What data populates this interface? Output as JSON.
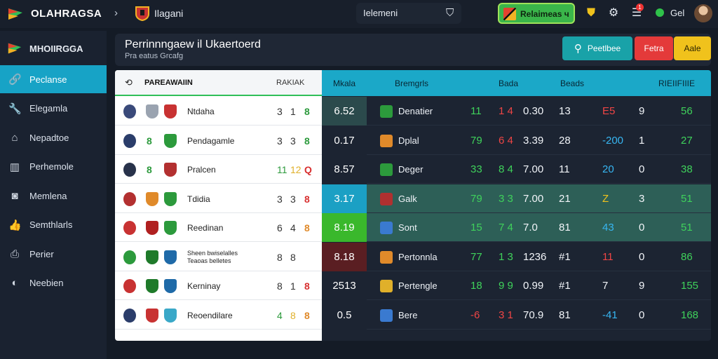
{
  "topbar": {
    "brand": "OLAHRAGSA",
    "breadcrumb_sep": "›",
    "breadcrumb": "Ilagani",
    "search_label": "Ielemeni",
    "live_button": "Relaimeas ч",
    "user_label": "Gel",
    "notif_count": "1"
  },
  "sidebar": {
    "header": "MHOIIRGGA",
    "items": [
      {
        "label": "Peclanse",
        "icon": "link-icon",
        "active": true
      },
      {
        "label": "Elegamla",
        "icon": "wrench-icon",
        "active": false
      },
      {
        "label": "Nepadtoe",
        "icon": "home-icon",
        "active": false
      },
      {
        "label": "Perhemole",
        "icon": "columns-icon",
        "active": false
      },
      {
        "label": "Memlena",
        "icon": "camera-icon",
        "active": false
      },
      {
        "label": "Semthlarls",
        "icon": "thumb-icon",
        "active": false
      },
      {
        "label": "Perier",
        "icon": "printer-icon",
        "active": false
      },
      {
        "label": "Neebien",
        "icon": "badge-icon",
        "active": false
      }
    ]
  },
  "header": {
    "title": "Perrinnngaew il Ukaertoerd",
    "subtitle": "Pra eatus Grcafg",
    "search_button": "Peetlbee",
    "red_button": "Fetra",
    "yellow_button": "Aale"
  },
  "fixtures": {
    "header_left": "PAREAWAIIN",
    "header_right": "RAKIAK",
    "rows": [
      {
        "name": "Ntdaha",
        "mid": "",
        "s1": "3",
        "s2": "1",
        "s3": "8",
        "c1": "#3a4a7a",
        "c2": "#9aa3b0",
        "c3": "#c83232",
        "s3color": "green"
      },
      {
        "name": "Pendagamle",
        "mid": "8",
        "s1": "3",
        "s2": "3",
        "s3": "8",
        "c1": "#2b3d6a",
        "c2": "#2c9a3c",
        "c3": "#2c9a3c",
        "s3color": "green"
      },
      {
        "name": "Pralcen",
        "mid": "8",
        "s1": "11",
        "s2": "12",
        "s3": "Q",
        "c1": "#28324a",
        "c2": "#2c9a3c",
        "c3": "#b33030",
        "s3color": "red"
      },
      {
        "name": "Tdidia",
        "mid": "",
        "s1": "3",
        "s2": "3",
        "s3": "8",
        "c1": "#b33030",
        "c2": "#e08a2a",
        "c3": "#2c9a3c",
        "s3color": "red"
      },
      {
        "name": "Reedinan",
        "mid": "",
        "s1": "6",
        "s2": "4",
        "s3": "8",
        "c1": "#c83232",
        "c2": "#b02020",
        "c3": "#2c9a3c",
        "s3color": "orange"
      },
      {
        "name": "Sheen bwiselalles\nTeaoas belletes",
        "mid": "",
        "s1": "8",
        "s2": "8",
        "s3": "",
        "c1": "#2c9a3c",
        "c2": "#1f7a2a",
        "c3": "#1f6aa8",
        "s3color": "green"
      },
      {
        "name": "Kerninay",
        "mid": "",
        "s1": "8",
        "s2": "1",
        "s3": "8",
        "c1": "#c83232",
        "c2": "#1f7a2a",
        "c3": "#1f6aa8",
        "s3color": "red"
      },
      {
        "name": "Reoendilare",
        "mid": "",
        "s1": "4",
        "s2": "8",
        "s3": "8",
        "c1": "#2b3d6a",
        "c2": "#c83232",
        "c3": "#3aa8c8",
        "s3color": "orange"
      }
    ]
  },
  "stats": {
    "headers": [
      "Mkala",
      "Bremgrls",
      "Bada",
      "Beads",
      "RIEIIFIIIE"
    ],
    "rows": [
      {
        "first": "6.52",
        "firstbg": "#2b4a4c",
        "team": "Denatier",
        "icon": "#2c9a3c",
        "a": "11",
        "ac": "green",
        "b": "1 4",
        "bc": "red",
        "c": "0.30",
        "d": "13",
        "e": "E5",
        "ec": "red",
        "f": "9",
        "g": "56",
        "gc": "green",
        "hl": false
      },
      {
        "first": "0.17",
        "firstbg": "#1c2432",
        "team": "Dplal",
        "icon": "#e08a2a",
        "a": "79",
        "ac": "green",
        "b": "6 4",
        "bc": "red",
        "c": "3.39",
        "d": "28",
        "e": "-200",
        "ec": "blue",
        "f": "1",
        "g": "27",
        "gc": "green",
        "hl": false
      },
      {
        "first": "8.57",
        "firstbg": "#1c2432",
        "team": "Deger",
        "icon": "#2c9a3c",
        "a": "33",
        "ac": "green",
        "b": "8 4",
        "bc": "green",
        "c": "7.00",
        "d": "11",
        "e": "20",
        "ec": "blue",
        "f": "0",
        "g": "38",
        "gc": "green",
        "hl": false
      },
      {
        "first": "3.17",
        "firstbg": "#1ba0c4",
        "team": "Galk",
        "icon": "#b03030",
        "a": "79",
        "ac": "green",
        "b": "3 3",
        "bc": "green",
        "c": "7.00",
        "d": "21",
        "e": "Z",
        "ec": "yellow",
        "f": "3",
        "g": "51",
        "gc": "green",
        "hl": true
      },
      {
        "first": "8.19",
        "firstbg": "#3ab82c",
        "team": "Sont",
        "icon": "#3a7ad0",
        "a": "15",
        "ac": "green",
        "b": "7 4",
        "bc": "green",
        "c": "7.0",
        "d": "81",
        "e": "43",
        "ec": "blue",
        "f": "0",
        "g": "51",
        "gc": "green",
        "hl": true
      },
      {
        "first": "8.18",
        "firstbg": "#5a1e22",
        "team": "Pertonnla",
        "icon": "#e08a2a",
        "a": "77",
        "ac": "green",
        "b": "1 3",
        "bc": "green",
        "c": "1236",
        "d": "#1",
        "e": "11",
        "ec": "red",
        "f": "0",
        "g": "86",
        "gc": "green",
        "hl": false
      },
      {
        "first": "2513",
        "firstbg": "#1c2432",
        "team": "Pertengle",
        "icon": "#e0b02a",
        "a": "18",
        "ac": "green",
        "b": "9 9",
        "bc": "green",
        "c": "0.99",
        "d": "#1",
        "e": "7",
        "ec": "white",
        "f": "9",
        "g": "155",
        "gc": "green",
        "hl": false
      },
      {
        "first": "0.5",
        "firstbg": "#1c2432",
        "team": "Bere",
        "icon": "#3a7ad0",
        "a": "-6",
        "ac": "red",
        "b": "3 1",
        "bc": "red",
        "c": "70.9",
        "d": "81",
        "e": "-41",
        "ec": "blue",
        "f": "0",
        "g": "168",
        "gc": "green",
        "hl": false
      }
    ]
  }
}
